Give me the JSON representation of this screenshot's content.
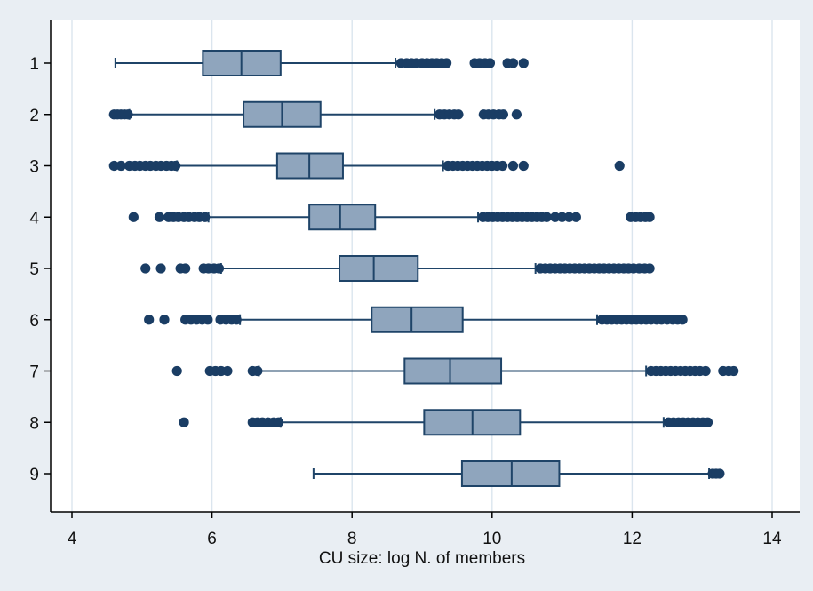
{
  "chart_data": {
    "type": "box",
    "orientation": "horizontal",
    "title": "",
    "xlabel": "CU size: log N. of members",
    "ylabel": "",
    "xlim": [
      4,
      14
    ],
    "xticks": [
      "4",
      "6",
      "8",
      "10",
      "12",
      "14"
    ],
    "categories": [
      "1",
      "2",
      "3",
      "4",
      "5",
      "6",
      "7",
      "8",
      "9"
    ],
    "grid": "vertical",
    "colors": {
      "box_fill": "#8fa5bd",
      "line": "#1f4468",
      "outlier": "#1a3d64",
      "grid": "#dbe5ee",
      "plot_bg": "#ffffff",
      "outer_bg": "#e9eef3"
    },
    "boxes": [
      {
        "category": "1",
        "whisker_low": 4.62,
        "q1": 5.87,
        "median": 6.42,
        "q3": 6.98,
        "whisker_high": 8.62,
        "outliers": [
          8.7,
          8.78,
          8.85,
          8.92,
          9.0,
          9.07,
          9.14,
          9.21,
          9.28,
          9.35,
          9.75,
          9.82,
          9.9,
          9.97,
          10.22,
          10.3,
          10.45
        ]
      },
      {
        "category": "2",
        "whisker_low": 4.82,
        "q1": 6.45,
        "median": 7.0,
        "q3": 7.55,
        "whisker_high": 9.18,
        "outliers": [
          4.6,
          4.65,
          4.7,
          4.75,
          4.8,
          9.25,
          9.32,
          9.39,
          9.46,
          9.52,
          9.88,
          9.95,
          10.02,
          10.1,
          10.16,
          10.35
        ]
      },
      {
        "category": "3",
        "whisker_low": 5.5,
        "q1": 6.93,
        "median": 7.39,
        "q3": 7.87,
        "whisker_high": 9.3,
        "outliers": [
          4.6,
          4.7,
          4.82,
          4.9,
          4.97,
          5.05,
          5.12,
          5.2,
          5.27,
          5.35,
          5.42,
          5.48,
          9.37,
          9.44,
          9.51,
          9.58,
          9.65,
          9.72,
          9.79,
          9.86,
          9.93,
          10.0,
          10.07,
          10.15,
          10.3,
          10.45,
          11.82
        ]
      },
      {
        "category": "4",
        "whisker_low": 5.95,
        "q1": 7.39,
        "median": 7.83,
        "q3": 8.33,
        "whisker_high": 9.8,
        "outliers": [
          4.88,
          5.25,
          5.38,
          5.45,
          5.52,
          5.6,
          5.67,
          5.75,
          5.82,
          5.9,
          9.87,
          9.94,
          10.01,
          10.08,
          10.15,
          10.22,
          10.29,
          10.36,
          10.43,
          10.5,
          10.57,
          10.64,
          10.71,
          10.78,
          10.9,
          11.0,
          11.1,
          11.2,
          11.98,
          12.05,
          12.12,
          12.19,
          12.25
        ]
      },
      {
        "category": "5",
        "whisker_low": 6.13,
        "q1": 7.82,
        "median": 8.31,
        "q3": 8.94,
        "whisker_high": 10.62,
        "outliers": [
          5.05,
          5.27,
          5.55,
          5.62,
          5.88,
          5.95,
          6.03,
          6.1,
          10.69,
          10.76,
          10.83,
          10.9,
          10.97,
          11.04,
          11.11,
          11.18,
          11.25,
          11.32,
          11.39,
          11.46,
          11.53,
          11.6,
          11.67,
          11.74,
          11.81,
          11.88,
          11.95,
          12.02,
          12.1,
          12.18,
          12.25
        ]
      },
      {
        "category": "6",
        "whisker_low": 6.4,
        "q1": 8.28,
        "median": 8.85,
        "q3": 9.58,
        "whisker_high": 11.5,
        "outliers": [
          5.1,
          5.32,
          5.62,
          5.7,
          5.78,
          5.86,
          5.94,
          6.12,
          6.2,
          6.28,
          6.35,
          11.57,
          11.64,
          11.71,
          11.78,
          11.85,
          11.92,
          11.99,
          12.06,
          12.13,
          12.2,
          12.27,
          12.35,
          12.42,
          12.5,
          12.58,
          12.65,
          12.72
        ]
      },
      {
        "category": "7",
        "whisker_low": 6.67,
        "q1": 8.75,
        "median": 9.4,
        "q3": 10.13,
        "whisker_high": 12.2,
        "outliers": [
          5.5,
          5.97,
          6.05,
          6.13,
          6.22,
          6.58,
          6.65,
          12.27,
          12.34,
          12.41,
          12.48,
          12.55,
          12.62,
          12.69,
          12.76,
          12.83,
          12.9,
          12.97,
          13.05,
          13.3,
          13.38,
          13.45
        ]
      },
      {
        "category": "8",
        "whisker_low": 6.98,
        "q1": 9.03,
        "median": 9.72,
        "q3": 10.4,
        "whisker_high": 12.45,
        "outliers": [
          5.6,
          6.58,
          6.65,
          6.72,
          6.8,
          6.88,
          6.95,
          12.52,
          12.59,
          12.66,
          12.73,
          12.8,
          12.87,
          12.94,
          13.01,
          13.08
        ]
      },
      {
        "category": "9",
        "whisker_low": 7.45,
        "q1": 9.57,
        "median": 10.28,
        "q3": 10.96,
        "whisker_high": 13.1,
        "outliers": [
          13.15,
          13.2,
          13.25
        ]
      }
    ]
  }
}
